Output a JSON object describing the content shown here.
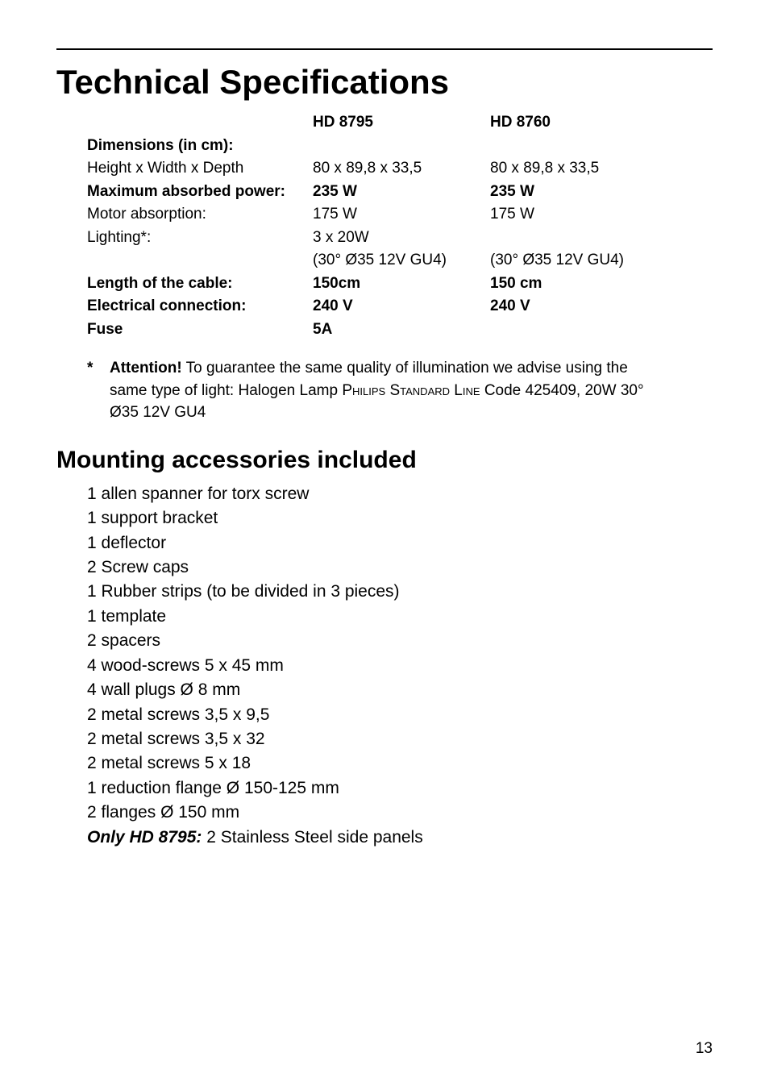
{
  "page_number": "13",
  "heading": "Technical Specifications",
  "specs": {
    "model1": "HD 8795",
    "model2": "HD 8760",
    "rows": [
      {
        "label": "Dimensions (in cm):",
        "v1": "",
        "v2": "",
        "label_bold": true,
        "v1_bold": false,
        "v2_bold": false
      },
      {
        "label": "Height x Width x Depth",
        "v1": "80 x 89,8 x 33,5",
        "v2": "80 x 89,8 x 33,5",
        "label_bold": false,
        "v1_bold": false,
        "v2_bold": false
      },
      {
        "label": "Maximum absorbed power:",
        "v1": "235 W",
        "v2": "235 W",
        "label_bold": true,
        "v1_bold": true,
        "v2_bold": true
      },
      {
        "label": "Motor absorption:",
        "v1": "175 W",
        "v2": "175 W",
        "label_bold": false,
        "v1_bold": false,
        "v2_bold": false
      },
      {
        "label": "Lighting*:",
        "v1": "3 x  20W",
        "v2": "",
        "label_bold": false,
        "v1_bold": false,
        "v2_bold": false
      },
      {
        "label": "",
        "v1": "(30° Ø35 12V GU4)",
        "v2": "(30° Ø35 12V GU4)",
        "label_bold": false,
        "v1_bold": false,
        "v2_bold": false
      },
      {
        "label": "Length of the cable:",
        "v1": "150cm",
        "v2": "150 cm",
        "label_bold": true,
        "v1_bold": true,
        "v2_bold": true
      },
      {
        "label": "Electrical connection:",
        "v1": "240 V",
        "v2": "240 V",
        "label_bold": true,
        "v1_bold": true,
        "v2_bold": true
      },
      {
        "label": "Fuse",
        "v1": "5A",
        "v2": "",
        "label_bold": true,
        "v1_bold": true,
        "v2_bold": false
      }
    ]
  },
  "note": {
    "star": "*",
    "lead_bold": "Attention!",
    "line1_rest": "  To guarantee the same quality of illumination we advise using the",
    "line2_pre": "same type of light: Halogen Lamp ",
    "line2_sc1": "Philips Standard Line",
    "line2_post": "  Code 425409, 20W  30°",
    "line3": "Ø35 12V GU4"
  },
  "subheading": "Mounting accessories included",
  "accessories": [
    "1 allen spanner for torx screw",
    "1 support bracket",
    "1 deflector",
    "2 Screw caps",
    "1 Rubber strips (to be divided in 3 pieces)",
    "1 template",
    "2 spacers",
    "4 wood-screws 5 x 45 mm",
    "4 wall plugs Ø 8 mm",
    "2 metal screws 3,5 x 9,5",
    "2 metal screws 3,5 x 32",
    "2 metal screws 5 x 18",
    "1 reduction flange Ø 150-125 mm",
    "2 flanges  Ø 150 mm"
  ],
  "only_line": {
    "em": "Only HD 8795:",
    "rest": " 2 Stainless Steel side panels"
  }
}
